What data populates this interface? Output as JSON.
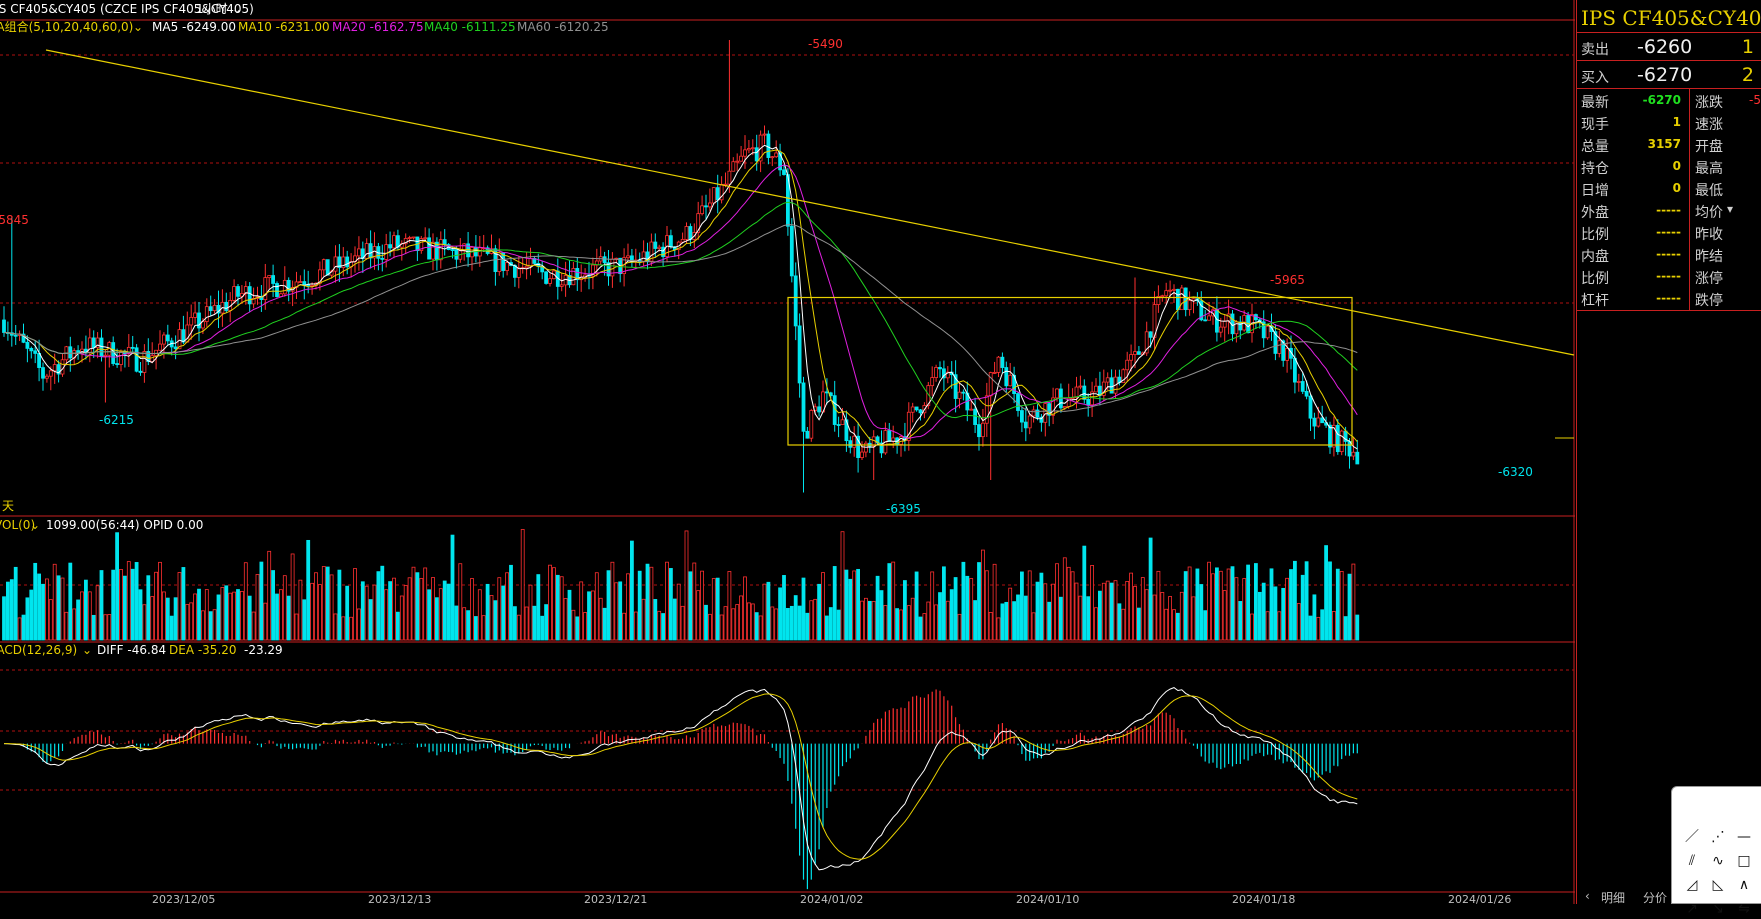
{
  "header": {
    "symbol_line": "IPS CF405&CY405 (CZCE IPS CF405&CY405)",
    "period": "1小时",
    "ma_group": "MA组合(5,10,20,40,60,0)",
    "ma5": "MA5 -6249.00",
    "ma10": "MA10 -6231.00",
    "ma20": "MA20 -6162.75",
    "ma40": "MA40 -6111.25",
    "ma60": "MA60 -6120.25"
  },
  "volume_header": {
    "name": "VOL(0)",
    "values": "1099.00(56:44)  OPID 0.00"
  },
  "macd_header": {
    "name": "MACD(12,26,9)",
    "diff": "DIFF -46.84",
    "dea": "DEA -35.20",
    "macd": "-23.29"
  },
  "colors": {
    "up": "#ff3030",
    "down": "#00e5ee",
    "ma5": "#ffffff",
    "ma10": "#e8d000",
    "ma20": "#e020e0",
    "ma40": "#20d020",
    "ma60": "#909090",
    "grid": "#b01010"
  },
  "chart_data": {
    "type": "candlestick",
    "title": "IPS CF405&CY405 1小时",
    "price_range": [
      -6410,
      -5470
    ],
    "annotations": {
      "high_label": "-5490",
      "low_label": "-6395",
      "left_high": "-5845",
      "left_low": "-6215",
      "recent_high": "-5965",
      "recent_low": "-6320"
    },
    "x_ticks": [
      "2023/12/05",
      "2023/12/13",
      "2023/12/21",
      "2024/01/02",
      "2024/01/10",
      "2024/01/18",
      "2024/01/26"
    ],
    "price_anchors": [
      [
        0,
        -6050
      ],
      [
        10,
        -6160
      ],
      [
        20,
        -6100
      ],
      [
        35,
        -6130
      ],
      [
        45,
        -6080
      ],
      [
        60,
        -6000
      ],
      [
        80,
        -5960
      ],
      [
        100,
        -5900
      ],
      [
        120,
        -5920
      ],
      [
        140,
        -5960
      ],
      [
        160,
        -5940
      ],
      [
        175,
        -5880
      ],
      [
        185,
        -5780
      ],
      [
        190,
        -5720
      ],
      [
        195,
        -5700
      ],
      [
        200,
        -5750
      ],
      [
        205,
        -6280
      ],
      [
        210,
        -6200
      ],
      [
        220,
        -6320
      ],
      [
        230,
        -6280
      ],
      [
        240,
        -6150
      ],
      [
        250,
        -6260
      ],
      [
        255,
        -6120
      ],
      [
        262,
        -6250
      ],
      [
        270,
        -6210
      ],
      [
        280,
        -6200
      ],
      [
        290,
        -6130
      ],
      [
        298,
        -5990
      ],
      [
        310,
        -6050
      ],
      [
        320,
        -6060
      ],
      [
        328,
        -6110
      ],
      [
        335,
        -6240
      ],
      [
        340,
        -6280
      ],
      [
        348,
        -6320
      ]
    ],
    "volume_range": [
      0,
      1900
    ],
    "macd_range": [
      -140,
      80
    ],
    "trendline": {
      "from": [
        "2023/12/05",
        -5450
      ],
      "to": [
        "2024/01/26",
        -6080
      ]
    },
    "box": {
      "price_top": -5965,
      "price_bottom": -6280
    }
  },
  "panel": {
    "title": "IPS CF405&CY405",
    "sell": {
      "label": "卖出",
      "price": "-6260",
      "vol": "1"
    },
    "buy": {
      "label": "买入",
      "price": "-6270",
      "vol": "2"
    },
    "rows": [
      {
        "k1": "最新",
        "v1": "-6270",
        "c1": "#20e020",
        "k2": "涨跌",
        "v2": "-5"
      },
      {
        "k1": "现手",
        "v1": "1",
        "c1": "#e8d000",
        "k2": "速涨",
        "v2": ""
      },
      {
        "k1": "总量",
        "v1": "3157",
        "c1": "#e8d000",
        "k2": "开盘",
        "v2": ""
      },
      {
        "k1": "持仓",
        "v1": "0",
        "c1": "#e8d000",
        "k2": "最高",
        "v2": ""
      },
      {
        "k1": "日增",
        "v1": "0",
        "c1": "#e8d000",
        "k2": "最低",
        "v2": ""
      },
      {
        "k1": "外盘",
        "v1": "-----",
        "c1": "#e8d000",
        "k2": "均价",
        "v2": ""
      },
      {
        "k1": "比例",
        "v1": "-----",
        "c1": "#e8d000",
        "k2": "昨收",
        "v2": ""
      },
      {
        "k1": "内盘",
        "v1": "-----",
        "c1": "#e8d000",
        "k2": "昨结",
        "v2": ""
      },
      {
        "k1": "比例",
        "v1": "-----",
        "c1": "#e8d000",
        "k2": "涨停",
        "v2": ""
      },
      {
        "k1": "杠杆",
        "v1": "-----",
        "c1": "#e8d000",
        "k2": "跌停",
        "v2": ""
      }
    ],
    "tabs": [
      "明细",
      "分价"
    ],
    "left_corner_label": "天"
  },
  "tools": [
    "／",
    "⋰",
    "—",
    "⫽",
    "∿",
    "□",
    "◿",
    "◺",
    "∧",
    "↗",
    "↘",
    "⇋"
  ]
}
